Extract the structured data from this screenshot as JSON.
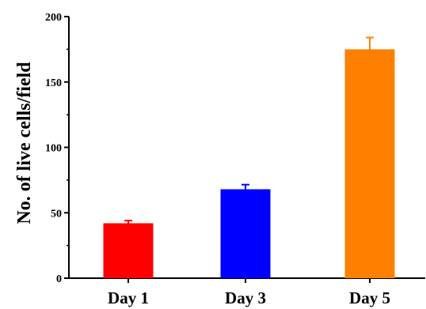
{
  "chart_data": {
    "type": "bar",
    "categories": [
      "Day 1",
      "Day 3",
      "Day 5"
    ],
    "values": [
      42,
      68,
      175
    ],
    "errors": [
      2,
      3.5,
      9
    ],
    "colors": [
      "#ff0000",
      "#0000ff",
      "#ff8000"
    ],
    "title": "",
    "xlabel": "",
    "ylabel": "No. of live cells/field",
    "ylim": [
      0,
      200
    ],
    "yticks": [
      0,
      50,
      100,
      150,
      200
    ],
    "grid": false,
    "legend": "none"
  }
}
